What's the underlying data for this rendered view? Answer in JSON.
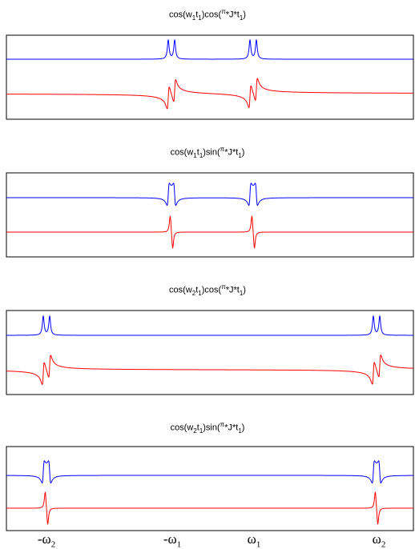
{
  "chart_data": [
    {
      "type": "line",
      "title_parts": [
        "cos(w",
        "1",
        "t",
        "1",
        ")cos(",
        "π",
        "*J*t",
        "1",
        ")"
      ],
      "series": [
        {
          "color": "#0000ff",
          "lineshape": "absorptive doublet",
          "peaks": [
            -1,
            1
          ]
        },
        {
          "color": "#ff0000",
          "lineshape": "dispersive doublet",
          "peaks": [
            -1,
            1
          ]
        }
      ]
    },
    {
      "type": "line",
      "title_parts": [
        "cos(w",
        "1",
        "t",
        "1",
        ")sin(",
        "π",
        "*J*t",
        "1",
        ")"
      ],
      "series": [
        {
          "color": "#0000ff",
          "lineshape": "dispersive antiphase doublet",
          "peaks": [
            -1,
            1
          ]
        },
        {
          "color": "#ff0000",
          "lineshape": "absorptive antiphase doublet",
          "peaks": [
            -1,
            1
          ]
        }
      ]
    },
    {
      "type": "line",
      "title_parts": [
        "cos(w",
        "2",
        "t",
        "1",
        ")cos(",
        "π",
        "*J*t",
        "1",
        ")"
      ],
      "series": [
        {
          "color": "#0000ff",
          "lineshape": "absorptive doublet",
          "peaks": [
            -2,
            2
          ]
        },
        {
          "color": "#ff0000",
          "lineshape": "dispersive doublet",
          "peaks": [
            -2,
            2
          ]
        }
      ]
    },
    {
      "type": "line",
      "title_parts": [
        "cos(w",
        "2",
        "t",
        "1",
        ")sin(",
        "π",
        "*J*t",
        "1",
        ")"
      ],
      "series": [
        {
          "color": "#0000ff",
          "lineshape": "dispersive antiphase doublet",
          "peaks": [
            -2,
            2
          ]
        },
        {
          "color": "#ff0000",
          "lineshape": "absorptive antiphase doublet",
          "peaks": [
            -2,
            2
          ]
        }
      ]
    }
  ],
  "x_ticks": [
    {
      "value": -2,
      "sign": "-",
      "sym": "ω",
      "sub": "2"
    },
    {
      "value": -1,
      "sign": "-",
      "sym": "ω",
      "sub": "1"
    },
    {
      "value": 1,
      "sign": "",
      "sym": "ω",
      "sub": "1"
    },
    {
      "value": 2,
      "sign": "",
      "sym": "ω",
      "sub": "2"
    }
  ],
  "colors": {
    "upper_trace": "#0000ff",
    "lower_trace": "#ff0000",
    "frame": "#000000"
  }
}
